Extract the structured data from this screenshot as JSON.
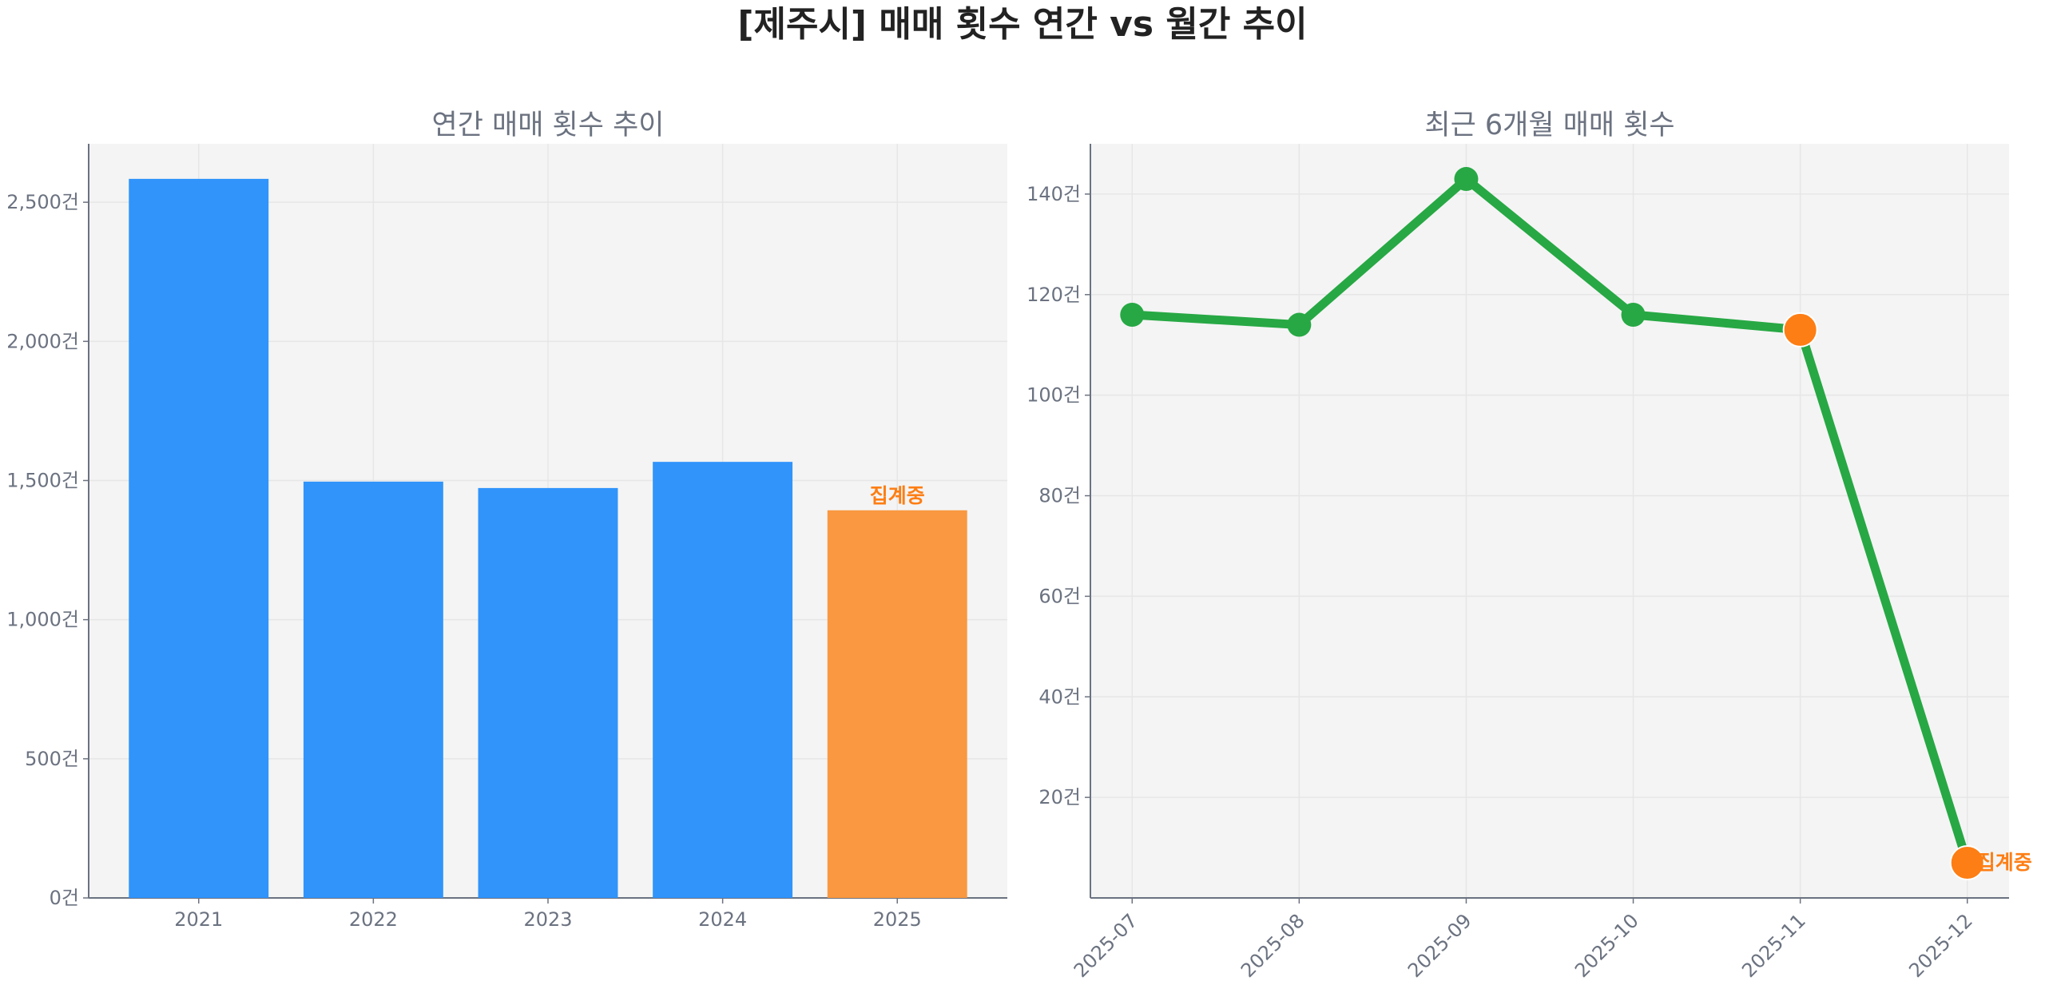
{
  "title": "[제주시] 매매 횟수 연간 vs 월간 추이",
  "colors": {
    "bar": "#3094fb",
    "bar_highlight": "#f99841",
    "line": "#27a844",
    "highlight_point": "#fd7e14",
    "annotation": "#fd7e14",
    "plot_bg": "#f4f4f4",
    "grid": "#e6e6e6"
  },
  "chart_data": [
    {
      "type": "bar",
      "title": "연간 매매 횟수 추이",
      "categories": [
        "2021",
        "2022",
        "2023",
        "2024",
        "2025"
      ],
      "values": [
        2584,
        1496,
        1473,
        1567,
        1393
      ],
      "highlight_index": 4,
      "annotation": {
        "index": 4,
        "text": "집계중"
      },
      "ylim": [
        0,
        2710
      ],
      "yticks": [
        0,
        500,
        1000,
        1500,
        2000,
        2500
      ],
      "ytick_labels": [
        "0건",
        "500건",
        "1,000건",
        "1,500건",
        "2,000건",
        "2,500건"
      ],
      "grid": true
    },
    {
      "type": "line",
      "title": "최근 6개월 매매 횟수",
      "categories": [
        "2025-07",
        "2025-08",
        "2025-09",
        "2025-10",
        "2025-11",
        "2025-12"
      ],
      "values": [
        116,
        114,
        143,
        116,
        113,
        7
      ],
      "highlight_indices": [
        4,
        5
      ],
      "annotation": {
        "index": 5,
        "text": "집계중"
      },
      "ylim": [
        0,
        150
      ],
      "yticks": [
        20,
        40,
        60,
        80,
        100,
        120,
        140
      ],
      "ytick_labels": [
        "20건",
        "40건",
        "60건",
        "80건",
        "100건",
        "120건",
        "140건"
      ],
      "grid": true
    }
  ]
}
